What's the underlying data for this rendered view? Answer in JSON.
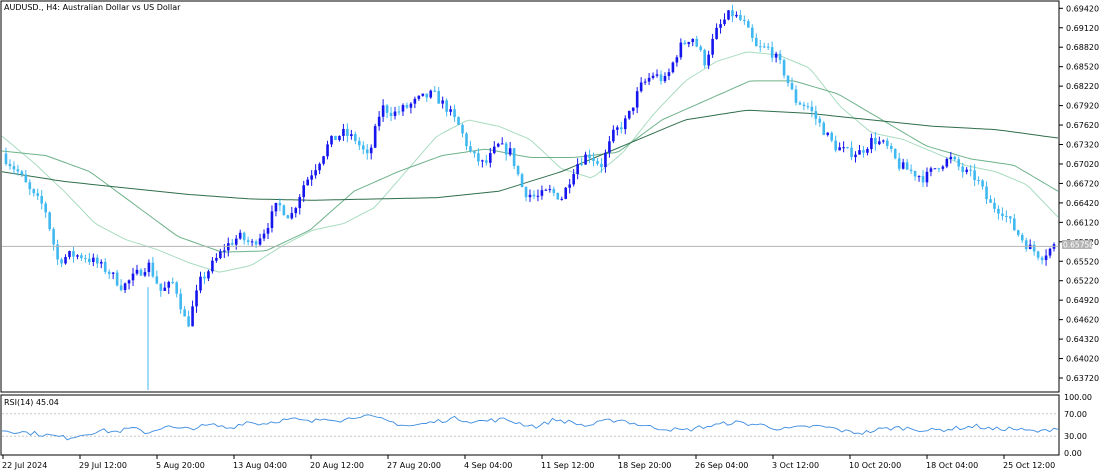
{
  "header": {
    "symbol": "AUDUSD.",
    "timeframe": "H4",
    "description": "Australian Dollar vs US Dollar"
  },
  "indicator": {
    "label": "RSI(14)",
    "value": "45.04"
  },
  "colors": {
    "bull": "#1515ee",
    "bear": "#40b8f0",
    "ma_fast": "#a8dcc0",
    "ma_mid": "#6db28a",
    "ma_slow": "#2f6e4c",
    "rsi": "#3c8ce0",
    "price_line": "#b4b4b4"
  },
  "price_tag": "0.65750",
  "chart_data": [
    {
      "type": "candlestick",
      "symbol": "AUDUSD.",
      "timeframe": "H4",
      "ylim": [
        0.6362,
        0.6952
      ],
      "y_ticks": [
        "0.69420",
        "0.69120",
        "0.68820",
        "0.68520",
        "0.68220",
        "0.67920",
        "0.67620",
        "0.67320",
        "0.67020",
        "0.66720",
        "0.66420",
        "0.66120",
        "0.65820",
        "0.65520",
        "0.65220",
        "0.64920",
        "0.64620",
        "0.64320",
        "0.64020",
        "0.63720"
      ],
      "x_ticks": [
        "22 Jul 2024",
        "29 Jul 12:00",
        "5 Aug 20:00",
        "13 Aug 04:00",
        "20 Aug 12:00",
        "27 Aug 20:00",
        "4 Sep 04:00",
        "11 Sep 12:00",
        "18 Sep 20:00",
        "26 Sep 04:00",
        "3 Oct 12:00",
        "10 Oct 20:00",
        "18 Oct 04:00",
        "25 Oct 12:00"
      ],
      "last_price": 0.6575,
      "close_path": [
        0.671,
        0.6688,
        0.6655,
        0.6635,
        0.6553,
        0.6562,
        0.656,
        0.6549,
        0.6535,
        0.6512,
        0.653,
        0.6548,
        0.6505,
        0.652,
        0.645,
        0.652,
        0.6548,
        0.6575,
        0.659,
        0.6578,
        0.66,
        0.664,
        0.662,
        0.667,
        0.67,
        0.6735,
        0.675,
        0.674,
        0.671,
        0.679,
        0.678,
        0.679,
        0.6802,
        0.681,
        0.679,
        0.676,
        0.6715,
        0.67,
        0.673,
        0.672,
        0.666,
        0.665,
        0.666,
        0.665,
        0.67,
        0.6718,
        0.67,
        0.675,
        0.677,
        0.682,
        0.684,
        0.683,
        0.688,
        0.69,
        0.686,
        0.691,
        0.6935,
        0.692,
        0.688,
        0.688,
        0.685,
        0.68,
        0.679,
        0.676,
        0.673,
        0.672,
        0.672,
        0.674,
        0.673,
        0.67,
        0.669,
        0.668,
        0.67,
        0.671,
        0.669,
        0.668,
        0.664,
        0.663,
        0.66,
        0.6575,
        0.656,
        0.6575
      ],
      "ma": [
        {
          "style": "fast",
          "values": [
            0.6745,
            0.6705,
            0.666,
            0.661,
            0.6585,
            0.657,
            0.655,
            0.6535,
            0.6545,
            0.6575,
            0.66,
            0.661,
            0.6635,
            0.669,
            0.6745,
            0.677,
            0.676,
            0.674,
            0.6695,
            0.668,
            0.672,
            0.678,
            0.683,
            0.686,
            0.6875,
            0.687,
            0.685,
            0.679,
            0.675,
            0.674,
            0.672,
            0.67,
            0.669,
            0.667,
            0.662
          ]
        },
        {
          "style": "mid",
          "values": [
            0.6722,
            0.6715,
            0.669,
            0.664,
            0.659,
            0.6566,
            0.6568,
            0.66,
            0.666,
            0.669,
            0.6715,
            0.6725,
            0.6712,
            0.6712,
            0.672,
            0.677,
            0.68,
            0.683,
            0.683,
            0.681,
            0.677,
            0.673,
            0.671,
            0.67,
            0.666
          ]
        },
        {
          "style": "slow",
          "values": [
            0.669,
            0.6675,
            0.6665,
            0.6655,
            0.6648,
            0.6646,
            0.6648,
            0.665,
            0.666,
            0.669,
            0.673,
            0.677,
            0.6785,
            0.678,
            0.677,
            0.676,
            0.6755,
            0.6742
          ]
        }
      ]
    },
    {
      "type": "line",
      "name": "RSI(14)",
      "ylim": [
        0,
        100
      ],
      "y_ticks": [
        100,
        70,
        30,
        0
      ],
      "y_tick_labels": [
        "100.00",
        "70.00",
        "30.00",
        "0.00"
      ],
      "levels": [
        70,
        30
      ],
      "last": 45.04,
      "values": [
        41,
        38,
        35,
        31,
        27,
        33,
        40,
        38,
        44,
        36,
        48,
        42,
        46,
        50,
        44,
        56,
        52,
        58,
        60,
        55,
        63,
        58,
        68,
        62,
        55,
        48,
        52,
        58,
        62,
        56,
        58,
        60,
        52,
        47,
        60,
        55,
        48,
        56,
        60,
        52,
        46,
        43,
        40,
        46,
        50,
        55,
        52,
        49,
        42,
        45,
        48,
        45,
        38,
        36,
        42,
        45,
        44,
        40,
        42,
        45,
        48,
        42,
        44,
        40,
        38,
        46
      ]
    }
  ]
}
